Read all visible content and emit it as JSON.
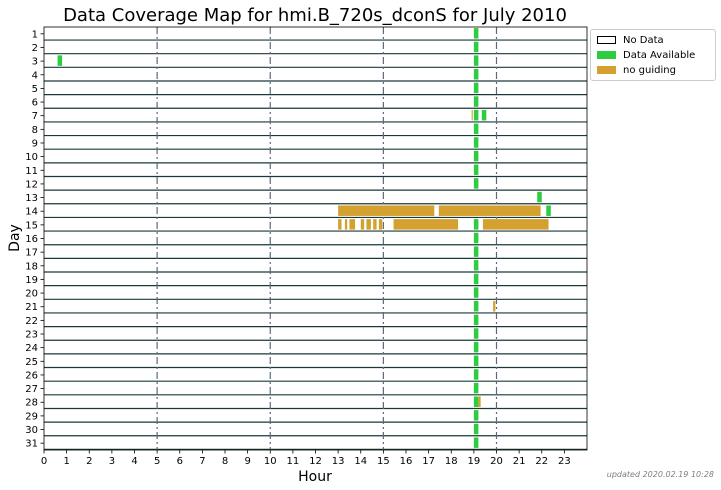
{
  "chart_data": {
    "type": "coverage-timeline",
    "title": "Data Coverage Map for hmi.B_720s_dconS for July 2010",
    "xlabel": "Hour",
    "ylabel": "Day",
    "xlim": [
      0,
      24
    ],
    "x_ticks": [
      0,
      1,
      2,
      3,
      4,
      5,
      6,
      7,
      8,
      9,
      10,
      11,
      12,
      13,
      14,
      15,
      16,
      17,
      18,
      19,
      20,
      21,
      22,
      23
    ],
    "days": [
      1,
      2,
      3,
      4,
      5,
      6,
      7,
      8,
      9,
      10,
      11,
      12,
      13,
      14,
      15,
      16,
      17,
      18,
      19,
      20,
      21,
      22,
      23,
      24,
      25,
      26,
      27,
      28,
      29,
      30,
      31
    ],
    "dashed_hours": [
      5,
      10,
      15,
      20
    ],
    "categories": [
      {
        "name": "No Data",
        "color": "#ffffff"
      },
      {
        "name": "Data Available",
        "color": "#2ecc40"
      },
      {
        "name": "no guiding",
        "color": "#d4a030"
      }
    ],
    "series": [
      {
        "name": "Data Available",
        "color": "#2ecc40",
        "segments": [
          {
            "day": 1,
            "start": 19.0,
            "end": 19.2
          },
          {
            "day": 2,
            "start": 19.0,
            "end": 19.2
          },
          {
            "day": 3,
            "start": 0.6,
            "end": 0.8
          },
          {
            "day": 3,
            "start": 19.0,
            "end": 19.2
          },
          {
            "day": 4,
            "start": 19.0,
            "end": 19.2
          },
          {
            "day": 5,
            "start": 19.0,
            "end": 19.2
          },
          {
            "day": 6,
            "start": 19.0,
            "end": 19.2
          },
          {
            "day": 7,
            "start": 19.0,
            "end": 19.2
          },
          {
            "day": 7,
            "start": 19.35,
            "end": 19.55
          },
          {
            "day": 8,
            "start": 19.0,
            "end": 19.2
          },
          {
            "day": 9,
            "start": 19.0,
            "end": 19.2
          },
          {
            "day": 10,
            "start": 19.0,
            "end": 19.2
          },
          {
            "day": 11,
            "start": 19.0,
            "end": 19.2
          },
          {
            "day": 12,
            "start": 19.0,
            "end": 19.2
          },
          {
            "day": 13,
            "start": 21.8,
            "end": 22.0
          },
          {
            "day": 14,
            "start": 22.2,
            "end": 22.4
          },
          {
            "day": 15,
            "start": 19.0,
            "end": 19.2
          },
          {
            "day": 16,
            "start": 19.0,
            "end": 19.2
          },
          {
            "day": 17,
            "start": 19.0,
            "end": 19.2
          },
          {
            "day": 18,
            "start": 19.0,
            "end": 19.2
          },
          {
            "day": 19,
            "start": 19.0,
            "end": 19.2
          },
          {
            "day": 20,
            "start": 19.0,
            "end": 19.2
          },
          {
            "day": 21,
            "start": 19.0,
            "end": 19.2
          },
          {
            "day": 22,
            "start": 19.0,
            "end": 19.2
          },
          {
            "day": 23,
            "start": 19.0,
            "end": 19.2
          },
          {
            "day": 24,
            "start": 19.0,
            "end": 19.2
          },
          {
            "day": 25,
            "start": 19.0,
            "end": 19.2
          },
          {
            "day": 26,
            "start": 19.0,
            "end": 19.2
          },
          {
            "day": 27,
            "start": 19.0,
            "end": 19.2
          },
          {
            "day": 28,
            "start": 19.0,
            "end": 19.2
          },
          {
            "day": 29,
            "start": 19.0,
            "end": 19.2
          },
          {
            "day": 30,
            "start": 19.0,
            "end": 19.2
          },
          {
            "day": 31,
            "start": 19.0,
            "end": 19.2
          }
        ]
      },
      {
        "name": "no guiding",
        "color": "#d4a030",
        "segments": [
          {
            "day": 7,
            "start": 18.9,
            "end": 18.95
          },
          {
            "day": 14,
            "start": 13.0,
            "end": 17.25
          },
          {
            "day": 14,
            "start": 17.45,
            "end": 21.95
          },
          {
            "day": 15,
            "start": 13.0,
            "end": 13.15
          },
          {
            "day": 15,
            "start": 13.3,
            "end": 13.4
          },
          {
            "day": 15,
            "start": 13.5,
            "end": 13.75
          },
          {
            "day": 15,
            "start": 14.0,
            "end": 14.15
          },
          {
            "day": 15,
            "start": 14.25,
            "end": 14.45
          },
          {
            "day": 15,
            "start": 14.55,
            "end": 14.7
          },
          {
            "day": 15,
            "start": 14.8,
            "end": 14.95
          },
          {
            "day": 15,
            "start": 15.45,
            "end": 18.3
          },
          {
            "day": 15,
            "start": 19.4,
            "end": 22.3
          },
          {
            "day": 21,
            "start": 19.85,
            "end": 19.95
          },
          {
            "day": 28,
            "start": 19.2,
            "end": 19.3
          }
        ]
      }
    ],
    "legend_position": "top-right",
    "grid": false
  },
  "footer": {
    "updated": "updated 2020.02.19 10:28"
  }
}
